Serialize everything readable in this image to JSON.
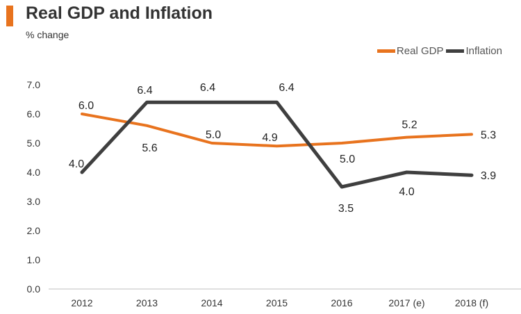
{
  "header": {
    "title": "Real GDP and Inflation",
    "subtitle": "% change"
  },
  "colors": {
    "accent": "#E8731E",
    "real_gdp": "#E8731E",
    "inflation": "#3F3F3F",
    "axis_text": "#333333",
    "axis_line": "#BFBFBF"
  },
  "chart_data": {
    "type": "line",
    "title": "Real GDP and Inflation",
    "subtitle": "% change",
    "xlabel": "",
    "ylabel": "",
    "categories": [
      "2012",
      "2013",
      "2014",
      "2015",
      "2016",
      "2017 (e)",
      "2018 (f)"
    ],
    "ylim": [
      0,
      7
    ],
    "yticks": [
      "0.0",
      "1.0",
      "2.0",
      "3.0",
      "4.0",
      "5.0",
      "6.0",
      "7.0"
    ],
    "grid": false,
    "legend_position": "top-right",
    "series": [
      {
        "name": "Real GDP",
        "values": [
          6.0,
          5.6,
          5.0,
          4.9,
          5.0,
          5.2,
          5.3
        ],
        "labels": [
          "6.0",
          "5.6",
          "5.0",
          "4.9",
          "5.0",
          "5.2",
          "5.3"
        ]
      },
      {
        "name": "Inflation",
        "values": [
          4.0,
          6.4,
          6.4,
          6.4,
          3.5,
          4.0,
          3.9
        ],
        "labels": [
          "4.0",
          "6.4",
          "6.4",
          "6.4",
          "3.5",
          "4.0",
          "3.9"
        ]
      }
    ]
  }
}
